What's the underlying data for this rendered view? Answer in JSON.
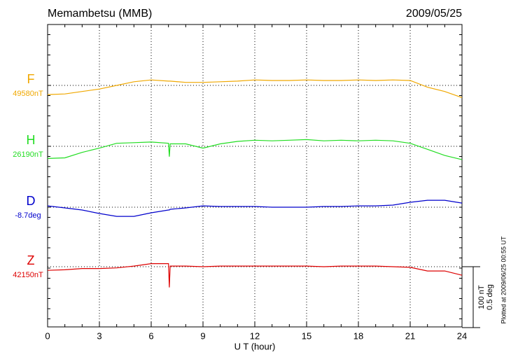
{
  "chart_data": {
    "type": "line",
    "title": "Memambetsu (MMB)",
    "date": "2009/05/25",
    "x_label": "U T (hour)",
    "footnote": "Plotted at 2009/06/25 00:55 UT",
    "xlim": [
      0,
      24
    ],
    "xticks": [
      0,
      3,
      6,
      9,
      12,
      15,
      18,
      21,
      24
    ],
    "grid": true,
    "scale_bar": [
      {
        "value": 100,
        "label": "100 nT"
      },
      {
        "value": 0.5,
        "label": "0.5 deg"
      }
    ],
    "x": [
      0,
      1,
      2,
      3,
      4,
      5,
      6,
      7,
      7.05,
      7.1,
      8,
      9,
      10,
      11,
      12,
      13,
      14,
      15,
      16,
      17,
      18,
      19,
      20,
      21,
      22,
      23,
      24
    ],
    "series": [
      {
        "name": "F",
        "color": "#f0a800",
        "baseline": {
          "value": 49580,
          "label": "49580nT"
        },
        "values": [
          49565,
          49566,
          49570,
          49574,
          49580,
          49586,
          49589,
          49587,
          49587,
          49587,
          49585,
          49585,
          49586,
          49587,
          49589,
          49588,
          49588,
          49589,
          49588,
          49588,
          49589,
          49588,
          49589,
          49588,
          49577,
          49570,
          49560
        ]
      },
      {
        "name": "H",
        "color": "#22dd22",
        "baseline": {
          "value": 26190,
          "label": "26190nT"
        },
        "values": [
          26170,
          26171,
          26180,
          26187,
          26195,
          26196,
          26197,
          26195,
          26173,
          26194,
          26194,
          26187,
          26194,
          26198,
          26200,
          26199,
          26200,
          26201,
          26199,
          26200,
          26199,
          26200,
          26199,
          26195,
          26185,
          26175,
          26168
        ]
      },
      {
        "name": "D",
        "color": "#0000cc",
        "axis": "y2",
        "baseline": {
          "value": -8.7,
          "label": "-8.7deg"
        },
        "values": [
          -8.689,
          -8.706,
          -8.723,
          -8.752,
          -8.775,
          -8.775,
          -8.746,
          -8.723,
          -8.723,
          -8.717,
          -8.706,
          -8.689,
          -8.694,
          -8.694,
          -8.694,
          -8.7,
          -8.7,
          -8.7,
          -8.694,
          -8.694,
          -8.689,
          -8.689,
          -8.683,
          -8.66,
          -8.643,
          -8.643,
          -8.666
        ]
      },
      {
        "name": "Z",
        "color": "#dd0000",
        "baseline": {
          "value": 42150,
          "label": "42150nT"
        },
        "values": [
          42144,
          42145,
          42147,
          42147,
          42148,
          42151,
          42155,
          42155,
          42116,
          42151,
          42151,
          42150,
          42151,
          42151,
          42151,
          42151,
          42151,
          42151,
          42150,
          42151,
          42151,
          42151,
          42150,
          42149,
          42143,
          42143,
          42136
        ]
      }
    ]
  }
}
